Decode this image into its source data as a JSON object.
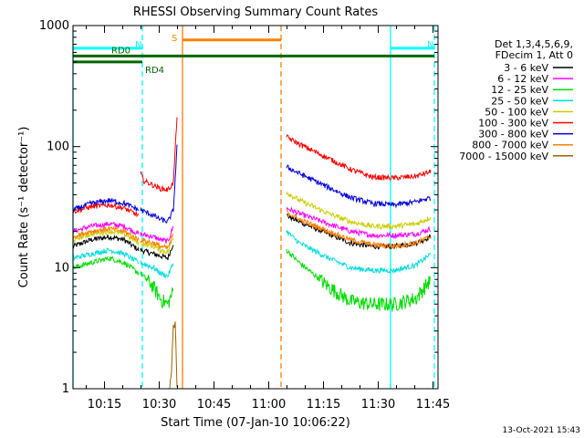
{
  "chart_data": {
    "type": "line",
    "title": "RHESSI Observing Summary Count Rates",
    "xlabel": "Start Time (07-Jan-10 10:06:22)",
    "ylabel": "Count Rate (s⁻¹ detector⁻¹)",
    "y_scale": "log",
    "ylim": [
      1,
      1000
    ],
    "xlim_minutes": [
      0,
      100
    ],
    "x_tick_labels": [
      "10:15",
      "10:30",
      "10:45",
      "11:00",
      "11:15",
      "11:30",
      "11:45"
    ],
    "y_tick_labels": [
      "1",
      "10",
      "100",
      "1000"
    ],
    "legend_header": [
      "Det 1,3,4,5,6,9,",
      "FDecim 1, Att 0"
    ],
    "series": [
      {
        "name": "3 - 6 keV",
        "color": "#000000",
        "segments": [
          {
            "t": [
              0,
              5,
              10,
              14,
              18
            ],
            "v": [
              15,
              17,
              18,
              17,
              14
            ]
          },
          {
            "t": [
              18.5,
              22,
              24,
              26,
              27.5
            ],
            "v": [
              14,
              13,
              12.5,
              12,
              16
            ]
          },
          {
            "t": [
              58.5,
              62,
              70,
              76,
              82,
              88,
              94,
              98
            ],
            "v": [
              27,
              24,
              19,
              16,
              15,
              15,
              16,
              18
            ]
          }
        ]
      },
      {
        "name": "6 - 12 keV",
        "color": "#ff00ff",
        "segments": [
          {
            "t": [
              0,
              5,
              10,
              14,
              18
            ],
            "v": [
              20,
              22,
              23,
              22,
              19
            ]
          },
          {
            "t": [
              18.5,
              22,
              24,
              26,
              27.5
            ],
            "v": [
              19,
              18,
              17,
              16.5,
              22
            ]
          },
          {
            "t": [
              58.5,
              62,
              70,
              76,
              82,
              88,
              94,
              98
            ],
            "v": [
              31,
              28,
              23,
              20,
              18.5,
              18.5,
              19,
              21
            ]
          }
        ]
      },
      {
        "name": "12 - 25 keV",
        "color": "#00dd00",
        "segments": [
          {
            "t": [
              0,
              5,
              10,
              14,
              18
            ],
            "v": [
              10,
              11,
              12,
              11,
              9
            ]
          },
          {
            "t": [
              18.5,
              22,
              24,
              26,
              27.5
            ],
            "v": [
              9,
              7,
              5.5,
              5,
              6.5
            ]
          },
          {
            "t": [
              58.5,
              62,
              70,
              76,
              82,
              88,
              94,
              98
            ],
            "v": [
              14,
              11,
              7,
              5.3,
              5,
              5,
              5.6,
              8
            ]
          }
        ]
      },
      {
        "name": "25 - 50 keV",
        "color": "#00dddd",
        "segments": [
          {
            "t": [
              0,
              5,
              10,
              14,
              18
            ],
            "v": [
              12,
              13,
              14,
              13,
              11
            ]
          },
          {
            "t": [
              18.5,
              22,
              24,
              26,
              27.5
            ],
            "v": [
              11,
              10,
              9,
              8.5,
              11
            ]
          },
          {
            "t": [
              58.5,
              62,
              70,
              76,
              82,
              88,
              94,
              98
            ],
            "v": [
              20,
              16,
              12,
              10,
              9.5,
              9.5,
              10.5,
              13
            ]
          }
        ]
      },
      {
        "name": "50 - 100 keV",
        "color": "#cccc00",
        "segments": [
          {
            "t": [
              0,
              5,
              10,
              14,
              18
            ],
            "v": [
              17,
              19,
              20,
              19,
              16
            ]
          },
          {
            "t": [
              18.5,
              22,
              24,
              26,
              27.5
            ],
            "v": [
              16,
              15,
              14,
              13.5,
              18
            ]
          },
          {
            "t": [
              58.5,
              62,
              70,
              76,
              82,
              88,
              94,
              98
            ],
            "v": [
              42,
              36,
              28,
              24,
              22,
              22,
              23,
              26
            ]
          }
        ]
      },
      {
        "name": "100 - 300 keV",
        "color": "#ff0000",
        "segments": [
          {
            "t": [
              0,
              5,
              10,
              14,
              18
            ],
            "v": [
              29,
              32,
              33,
              31,
              27
            ]
          },
          {
            "t": [
              18.5,
              19.5,
              22,
              24,
              26,
              27.5,
              28.5
            ],
            "v": [
              60,
              52,
              48,
              45,
              44,
              50,
              180
            ]
          },
          {
            "t": [
              58.5,
              62,
              70,
              76,
              82,
              88,
              94,
              98
            ],
            "v": [
              120,
              105,
              80,
              65,
              56,
              55,
              57,
              62
            ]
          }
        ]
      },
      {
        "name": "300 - 800 keV",
        "color": "#0000dd",
        "segments": [
          {
            "t": [
              0,
              5,
              10,
              14,
              18
            ],
            "v": [
              30,
              34,
              36,
              34,
              30
            ]
          },
          {
            "t": [
              18.5,
              22,
              24,
              26,
              27.5,
              28.5
            ],
            "v": [
              30,
              27,
              25,
              24,
              30,
              100
            ]
          },
          {
            "t": [
              58.5,
              62,
              70,
              76,
              82,
              88,
              94,
              98
            ],
            "v": [
              68,
              60,
              46,
              38,
              34,
              33,
              35,
              38
            ]
          }
        ]
      },
      {
        "name": "800 - 7000 keV",
        "color": "#ff8000",
        "segments": [
          {
            "t": [
              0,
              5,
              10,
              14,
              18
            ],
            "v": [
              18,
              20,
              21,
              20,
              17
            ]
          },
          {
            "t": [
              18.5,
              22,
              24,
              26,
              27.5
            ],
            "v": [
              17,
              16,
              15,
              14.5,
              19
            ]
          },
          {
            "t": [
              58.5,
              62,
              70,
              76,
              82,
              88,
              94,
              98
            ],
            "v": [
              29,
              25,
              20,
              17,
              15.5,
              15,
              16,
              18
            ]
          }
        ]
      },
      {
        "name": "7000 - 15000 keV",
        "color": "#996600",
        "segments": [
          {
            "t": [
              26.5,
              27,
              27.5,
              28,
              28.5
            ],
            "v": [
              1,
              1.5,
              3,
              4,
              1
            ]
          }
        ]
      }
    ],
    "status_bars": [
      {
        "label": "N",
        "color": "#00ffff",
        "t_start": 0,
        "t_end": 19,
        "value": 650
      },
      {
        "label": "N",
        "color": "#00ffff",
        "t_start": 87,
        "t_end": 99,
        "value": 650
      },
      {
        "label": "S",
        "color": "#ff8000",
        "t_start": 30,
        "t_end": 57,
        "value": 760
      },
      {
        "label": "RD0",
        "color": "#006600",
        "t_start": 0,
        "t_end": 99,
        "value": 560
      },
      {
        "label": "RD4",
        "color": "#006600",
        "t_start": 0,
        "t_end": 19,
        "value": 500
      }
    ],
    "vertical_markers": [
      {
        "t": 0,
        "color": "#00ffff",
        "style": "solid"
      },
      {
        "t": 19,
        "color": "#00ffff",
        "style": "dashed"
      },
      {
        "t": 30,
        "color": "#ff8000",
        "style": "solid"
      },
      {
        "t": 57,
        "color": "#ff8000",
        "style": "dashed"
      },
      {
        "t": 87,
        "color": "#00ffff",
        "style": "solid"
      },
      {
        "t": 99,
        "color": "#00ffff",
        "style": "dashed"
      }
    ],
    "gap_minutes": [
      30,
      57
    ]
  },
  "footer": {
    "timestamp": "13-Oct-2021 15:43"
  }
}
